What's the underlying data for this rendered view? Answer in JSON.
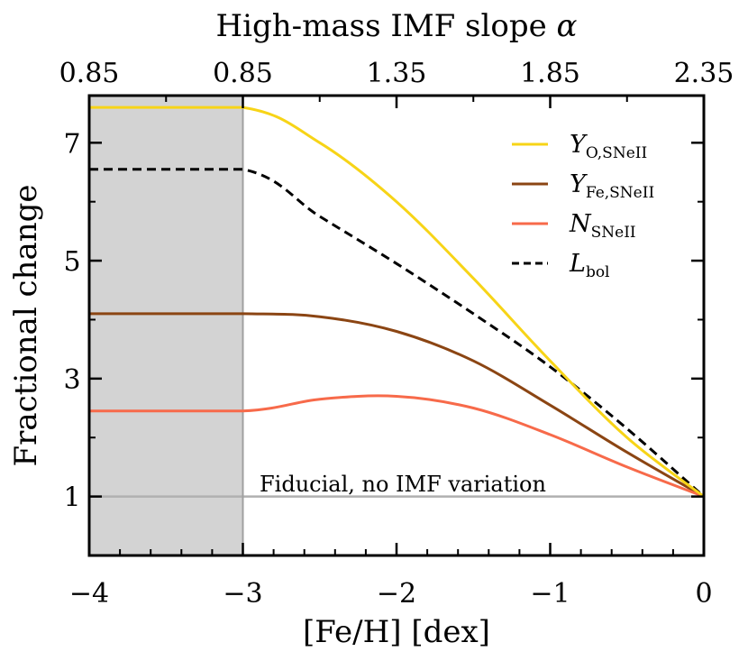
{
  "chart_data": {
    "type": "line",
    "title": "",
    "xlabel": "[Fe/H] [dex]",
    "ylabel": "Fractional change",
    "top_xlabel": "High-mass IMF slope α",
    "xlim": [
      -4,
      0
    ],
    "ylim": [
      0,
      7.8
    ],
    "grid": false,
    "legend_position": "top-right",
    "x_ticks": [
      -4,
      -3,
      -2,
      -1,
      0
    ],
    "x_tick_labels": [
      "−4",
      "−3",
      "−2",
      "−1",
      "0"
    ],
    "y_ticks": [
      1,
      3,
      5,
      7
    ],
    "y_tick_labels": [
      "1",
      "3",
      "5",
      "7"
    ],
    "top_ticks_feh": [
      -4,
      -3,
      -2,
      -1,
      0
    ],
    "top_tick_labels": [
      "0.85",
      "0.85",
      "1.35",
      "1.85",
      "2.35"
    ],
    "shaded_region": {
      "x_from": -4,
      "x_to": -3,
      "color": "#d3d3d3"
    },
    "reference_line": {
      "y": 1,
      "label": "Fiducial,  no IMF variation",
      "color": "#b0b0b0"
    },
    "series": [
      {
        "name": "Y_O,SNeII",
        "label_main": "Y",
        "label_sub": "O,SNeII",
        "color": "#f7d417",
        "dash": "solid",
        "x": [
          -4,
          -3,
          -2.5,
          -2,
          -1.5,
          -1,
          -0.5,
          0
        ],
        "y": [
          7.6,
          7.6,
          7.0,
          6.0,
          4.7,
          3.3,
          2.0,
          1.0
        ]
      },
      {
        "name": "Y_Fe,SNeII",
        "label_main": "Y",
        "label_sub": "Fe,SNeII",
        "color": "#8b4513",
        "dash": "solid",
        "x": [
          -4,
          -3,
          -2.5,
          -2,
          -1.5,
          -1,
          -0.5,
          0
        ],
        "y": [
          4.1,
          4.1,
          4.05,
          3.8,
          3.3,
          2.55,
          1.75,
          1.0
        ]
      },
      {
        "name": "N_SNeII",
        "label_main": "N",
        "label_sub": "SNeII",
        "color": "#f76a4a",
        "dash": "solid",
        "x": [
          -4,
          -3,
          -2.5,
          -2,
          -1.5,
          -1,
          -0.5,
          0
        ],
        "y": [
          2.45,
          2.45,
          2.65,
          2.7,
          2.5,
          2.05,
          1.5,
          1.0
        ]
      },
      {
        "name": "L_bol",
        "label_main": "L",
        "label_sub": "bol",
        "color": "#000000",
        "dash": "dashed",
        "x": [
          -4,
          -3,
          -2.5,
          -2,
          -1.5,
          -1,
          -0.5,
          0
        ],
        "y": [
          6.55,
          6.55,
          5.75,
          4.95,
          4.1,
          3.2,
          2.15,
          1.0
        ]
      }
    ]
  }
}
